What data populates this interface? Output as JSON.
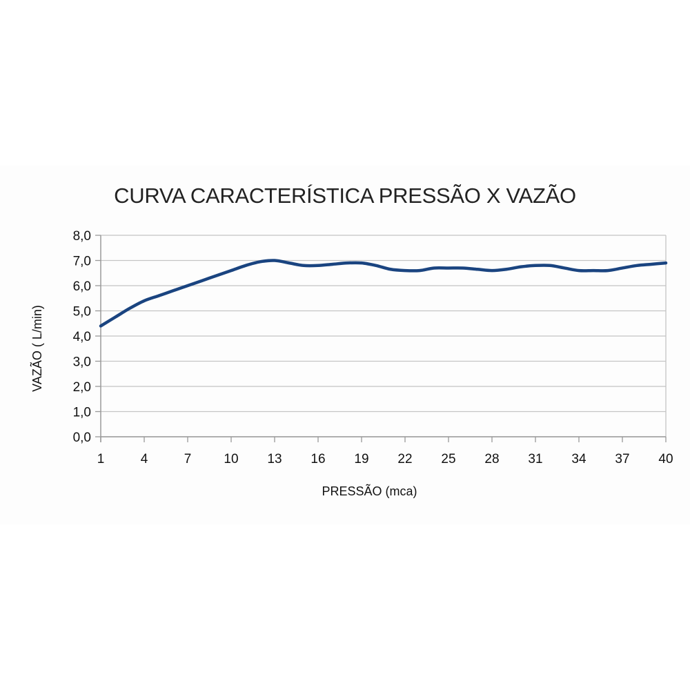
{
  "chart_data": {
    "type": "line",
    "title": "CURVA CARACTERÍSTICA PRESSÃO X VAZÃO",
    "xlabel": "PRESSÃO (mca)",
    "ylabel": "VAZÃO ( L/min)",
    "x": [
      1,
      2,
      3,
      4,
      5,
      6,
      7,
      8,
      9,
      10,
      11,
      12,
      13,
      14,
      15,
      16,
      17,
      18,
      19,
      20,
      21,
      22,
      23,
      24,
      25,
      26,
      27,
      28,
      29,
      30,
      31,
      32,
      33,
      34,
      35,
      36,
      37,
      38,
      39,
      40
    ],
    "x_tick_labels": [
      "1",
      "4",
      "7",
      "10",
      "13",
      "16",
      "19",
      "22",
      "25",
      "28",
      "31",
      "34",
      "37",
      "40"
    ],
    "y_tick_labels": [
      "0,0",
      "1,0",
      "2,0",
      "3,0",
      "4,0",
      "5,0",
      "6,0",
      "7,0",
      "8,0"
    ],
    "series": [
      {
        "values": [
          4.4,
          4.75,
          5.1,
          5.4,
          5.6,
          5.8,
          6.0,
          6.2,
          6.4,
          6.6,
          6.8,
          6.95,
          7.0,
          6.9,
          6.8,
          6.8,
          6.85,
          6.9,
          6.9,
          6.8,
          6.65,
          6.6,
          6.6,
          6.7,
          6.7,
          6.7,
          6.65,
          6.6,
          6.65,
          6.75,
          6.8,
          6.8,
          6.7,
          6.6,
          6.6,
          6.6,
          6.7,
          6.8,
          6.85,
          6.9
        ],
        "color": "#1a4480"
      }
    ],
    "xlim": [
      1,
      40
    ],
    "ylim": [
      0,
      8
    ],
    "y_major_step": 1,
    "grid": true,
    "legend": "none"
  }
}
